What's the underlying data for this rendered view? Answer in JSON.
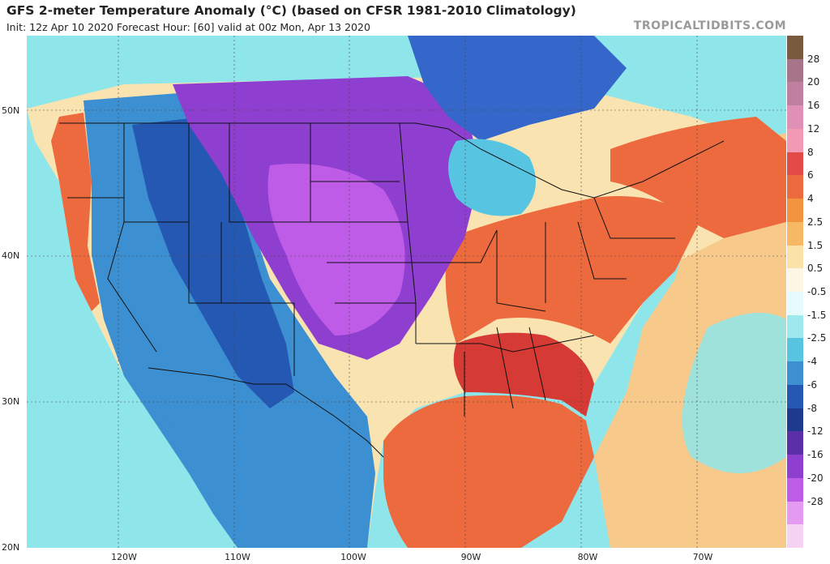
{
  "header": {
    "title": "GFS 2-meter Temperature Anomaly (°C) (based on CFSR 1981-2010 Climatology)",
    "subtitle": "Init: 12z Apr 10 2020   Forecast Hour: [60]   valid at 00z Mon, Apr 13 2020",
    "brand": "TROPICALTIDBITS.COM"
  },
  "axes": {
    "lat_labels": [
      "50N",
      "40N",
      "30N",
      "20N"
    ],
    "lon_labels": [
      "120W",
      "110W",
      "100W",
      "90W",
      "80W",
      "70W"
    ]
  },
  "colorbar": {
    "labels": [
      "28",
      "20",
      "16",
      "12",
      "8",
      "6",
      "4",
      "2.5",
      "1.5",
      "0.5",
      "-0.5",
      "-1.5",
      "-2.5",
      "-4",
      "-6",
      "-8",
      "-12",
      "-16",
      "-20",
      "-28"
    ],
    "colors": [
      "#7a5a3f",
      "#a8748a",
      "#c07fa0",
      "#e08fb6",
      "#f29ab4",
      "#e24b47",
      "#ec6a3e",
      "#f2943f",
      "#f7b865",
      "#fbe2a8",
      "#fdf6e4",
      "#e6fbfb",
      "#9ee9ee",
      "#57c5e2",
      "#3c8fd0",
      "#2458b3",
      "#1e3a8f",
      "#5a2fa7",
      "#8e3fd0",
      "#bf5ce7",
      "#e39af0",
      "#f6d3f3"
    ]
  },
  "map_colors": {
    "ocean_pacific": "#8fe6ea",
    "ocean_atlantic": "#f7c98a",
    "gulf": "#ec6a3e",
    "land_base": "#f9e3b1",
    "warm": "#ec6a3e",
    "hot": "#d63a35",
    "cool": "#3c8fd0",
    "cold": "#2458b3",
    "purple": "#8e3fd0",
    "violet": "#bf5ce7",
    "north_blue": "#3566c9",
    "lines": "#111111"
  }
}
